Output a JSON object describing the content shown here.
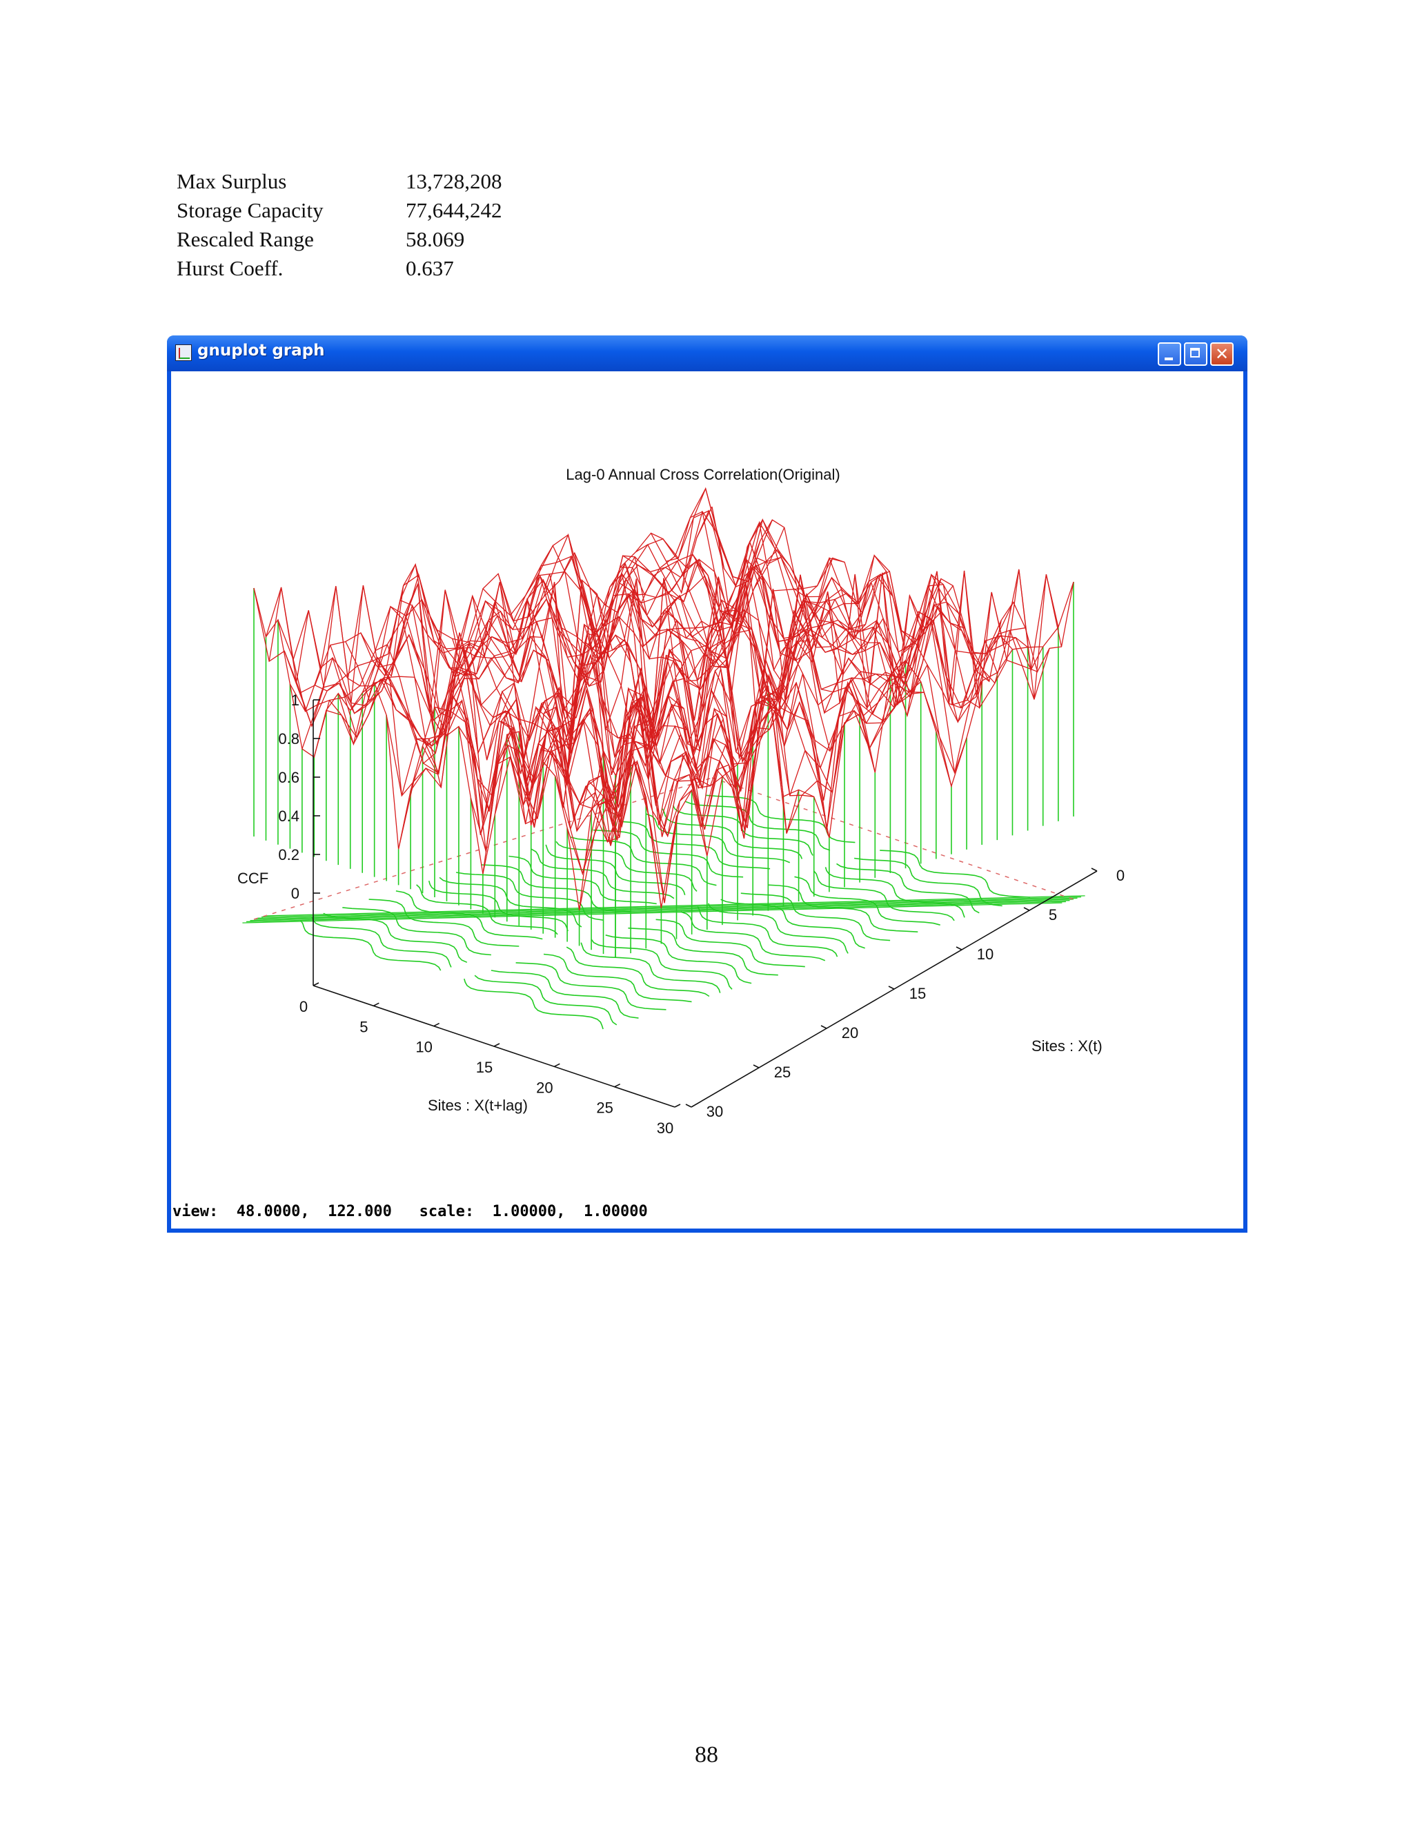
{
  "stats": [
    {
      "label": "Max Surplus",
      "value": "13,728,208"
    },
    {
      "label": "Storage Capacity",
      "value": "77,644,242"
    },
    {
      "label": "Rescaled Range",
      "value": "58.069"
    },
    {
      "label": "Hurst Coeff.",
      "value": "0.637"
    }
  ],
  "window": {
    "title": "gnuplot graph",
    "icon": "gnuplot-app-icon",
    "controls": [
      "minimize-icon",
      "maximize-icon",
      "close-icon"
    ],
    "status": "view:  48.0000,  122.000   scale:  1.00000,  1.00000"
  },
  "chart_data": {
    "type": "surface3d",
    "title": "Lag-0 Annual Cross Correlation(Original)",
    "zlabel": "CCF",
    "xlabel": "Sites : X(t+lag)",
    "ylabel": "Sites : X(t)",
    "z_ticks": [
      "1",
      "0.8",
      "0.6",
      "0.4",
      "0.2",
      "0"
    ],
    "x_ticks": [
      "0",
      "5",
      "10",
      "15",
      "20",
      "25",
      "30"
    ],
    "y_ticks": [
      "0",
      "5",
      "10",
      "15",
      "20",
      "25",
      "30"
    ],
    "xlim": [
      0,
      30
    ],
    "ylim": [
      0,
      30
    ],
    "zlim": [
      0,
      1
    ],
    "surface_color": "#d81e1e",
    "base_color": "#22cc22",
    "contour_color": "#22cc22"
  },
  "page": {
    "number": "88"
  }
}
